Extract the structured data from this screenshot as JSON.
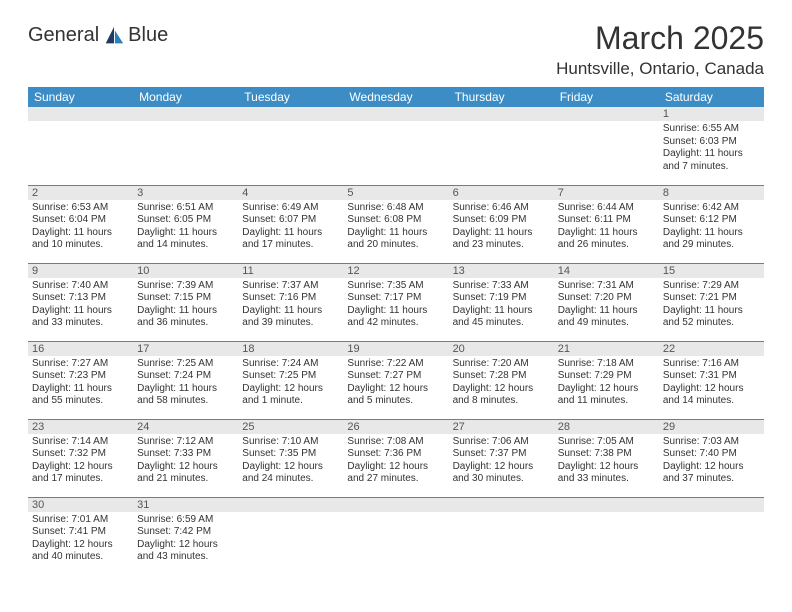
{
  "brand": {
    "name1": "General",
    "name2": "Blue"
  },
  "title": "March 2025",
  "location": "Huntsville, Ontario, Canada",
  "colors": {
    "header_bg": "#3c8dc5",
    "header_text": "#ffffff",
    "daynum_bg": "#e8e8e8",
    "border": "#3c8dc5",
    "text": "#333333"
  },
  "daynames": [
    "Sunday",
    "Monday",
    "Tuesday",
    "Wednesday",
    "Thursday",
    "Friday",
    "Saturday"
  ],
  "weeks": [
    [
      {
        "n": "",
        "sr": "",
        "ss": "",
        "dl": ""
      },
      {
        "n": "",
        "sr": "",
        "ss": "",
        "dl": ""
      },
      {
        "n": "",
        "sr": "",
        "ss": "",
        "dl": ""
      },
      {
        "n": "",
        "sr": "",
        "ss": "",
        "dl": ""
      },
      {
        "n": "",
        "sr": "",
        "ss": "",
        "dl": ""
      },
      {
        "n": "",
        "sr": "",
        "ss": "",
        "dl": ""
      },
      {
        "n": "1",
        "sr": "Sunrise: 6:55 AM",
        "ss": "Sunset: 6:03 PM",
        "dl": "Daylight: 11 hours and 7 minutes."
      }
    ],
    [
      {
        "n": "2",
        "sr": "Sunrise: 6:53 AM",
        "ss": "Sunset: 6:04 PM",
        "dl": "Daylight: 11 hours and 10 minutes."
      },
      {
        "n": "3",
        "sr": "Sunrise: 6:51 AM",
        "ss": "Sunset: 6:05 PM",
        "dl": "Daylight: 11 hours and 14 minutes."
      },
      {
        "n": "4",
        "sr": "Sunrise: 6:49 AM",
        "ss": "Sunset: 6:07 PM",
        "dl": "Daylight: 11 hours and 17 minutes."
      },
      {
        "n": "5",
        "sr": "Sunrise: 6:48 AM",
        "ss": "Sunset: 6:08 PM",
        "dl": "Daylight: 11 hours and 20 minutes."
      },
      {
        "n": "6",
        "sr": "Sunrise: 6:46 AM",
        "ss": "Sunset: 6:09 PM",
        "dl": "Daylight: 11 hours and 23 minutes."
      },
      {
        "n": "7",
        "sr": "Sunrise: 6:44 AM",
        "ss": "Sunset: 6:11 PM",
        "dl": "Daylight: 11 hours and 26 minutes."
      },
      {
        "n": "8",
        "sr": "Sunrise: 6:42 AM",
        "ss": "Sunset: 6:12 PM",
        "dl": "Daylight: 11 hours and 29 minutes."
      }
    ],
    [
      {
        "n": "9",
        "sr": "Sunrise: 7:40 AM",
        "ss": "Sunset: 7:13 PM",
        "dl": "Daylight: 11 hours and 33 minutes."
      },
      {
        "n": "10",
        "sr": "Sunrise: 7:39 AM",
        "ss": "Sunset: 7:15 PM",
        "dl": "Daylight: 11 hours and 36 minutes."
      },
      {
        "n": "11",
        "sr": "Sunrise: 7:37 AM",
        "ss": "Sunset: 7:16 PM",
        "dl": "Daylight: 11 hours and 39 minutes."
      },
      {
        "n": "12",
        "sr": "Sunrise: 7:35 AM",
        "ss": "Sunset: 7:17 PM",
        "dl": "Daylight: 11 hours and 42 minutes."
      },
      {
        "n": "13",
        "sr": "Sunrise: 7:33 AM",
        "ss": "Sunset: 7:19 PM",
        "dl": "Daylight: 11 hours and 45 minutes."
      },
      {
        "n": "14",
        "sr": "Sunrise: 7:31 AM",
        "ss": "Sunset: 7:20 PM",
        "dl": "Daylight: 11 hours and 49 minutes."
      },
      {
        "n": "15",
        "sr": "Sunrise: 7:29 AM",
        "ss": "Sunset: 7:21 PM",
        "dl": "Daylight: 11 hours and 52 minutes."
      }
    ],
    [
      {
        "n": "16",
        "sr": "Sunrise: 7:27 AM",
        "ss": "Sunset: 7:23 PM",
        "dl": "Daylight: 11 hours and 55 minutes."
      },
      {
        "n": "17",
        "sr": "Sunrise: 7:25 AM",
        "ss": "Sunset: 7:24 PM",
        "dl": "Daylight: 11 hours and 58 minutes."
      },
      {
        "n": "18",
        "sr": "Sunrise: 7:24 AM",
        "ss": "Sunset: 7:25 PM",
        "dl": "Daylight: 12 hours and 1 minute."
      },
      {
        "n": "19",
        "sr": "Sunrise: 7:22 AM",
        "ss": "Sunset: 7:27 PM",
        "dl": "Daylight: 12 hours and 5 minutes."
      },
      {
        "n": "20",
        "sr": "Sunrise: 7:20 AM",
        "ss": "Sunset: 7:28 PM",
        "dl": "Daylight: 12 hours and 8 minutes."
      },
      {
        "n": "21",
        "sr": "Sunrise: 7:18 AM",
        "ss": "Sunset: 7:29 PM",
        "dl": "Daylight: 12 hours and 11 minutes."
      },
      {
        "n": "22",
        "sr": "Sunrise: 7:16 AM",
        "ss": "Sunset: 7:31 PM",
        "dl": "Daylight: 12 hours and 14 minutes."
      }
    ],
    [
      {
        "n": "23",
        "sr": "Sunrise: 7:14 AM",
        "ss": "Sunset: 7:32 PM",
        "dl": "Daylight: 12 hours and 17 minutes."
      },
      {
        "n": "24",
        "sr": "Sunrise: 7:12 AM",
        "ss": "Sunset: 7:33 PM",
        "dl": "Daylight: 12 hours and 21 minutes."
      },
      {
        "n": "25",
        "sr": "Sunrise: 7:10 AM",
        "ss": "Sunset: 7:35 PM",
        "dl": "Daylight: 12 hours and 24 minutes."
      },
      {
        "n": "26",
        "sr": "Sunrise: 7:08 AM",
        "ss": "Sunset: 7:36 PM",
        "dl": "Daylight: 12 hours and 27 minutes."
      },
      {
        "n": "27",
        "sr": "Sunrise: 7:06 AM",
        "ss": "Sunset: 7:37 PM",
        "dl": "Daylight: 12 hours and 30 minutes."
      },
      {
        "n": "28",
        "sr": "Sunrise: 7:05 AM",
        "ss": "Sunset: 7:38 PM",
        "dl": "Daylight: 12 hours and 33 minutes."
      },
      {
        "n": "29",
        "sr": "Sunrise: 7:03 AM",
        "ss": "Sunset: 7:40 PM",
        "dl": "Daylight: 12 hours and 37 minutes."
      }
    ],
    [
      {
        "n": "30",
        "sr": "Sunrise: 7:01 AM",
        "ss": "Sunset: 7:41 PM",
        "dl": "Daylight: 12 hours and 40 minutes."
      },
      {
        "n": "31",
        "sr": "Sunrise: 6:59 AM",
        "ss": "Sunset: 7:42 PM",
        "dl": "Daylight: 12 hours and 43 minutes."
      },
      {
        "n": "",
        "sr": "",
        "ss": "",
        "dl": ""
      },
      {
        "n": "",
        "sr": "",
        "ss": "",
        "dl": ""
      },
      {
        "n": "",
        "sr": "",
        "ss": "",
        "dl": ""
      },
      {
        "n": "",
        "sr": "",
        "ss": "",
        "dl": ""
      },
      {
        "n": "",
        "sr": "",
        "ss": "",
        "dl": ""
      }
    ]
  ]
}
